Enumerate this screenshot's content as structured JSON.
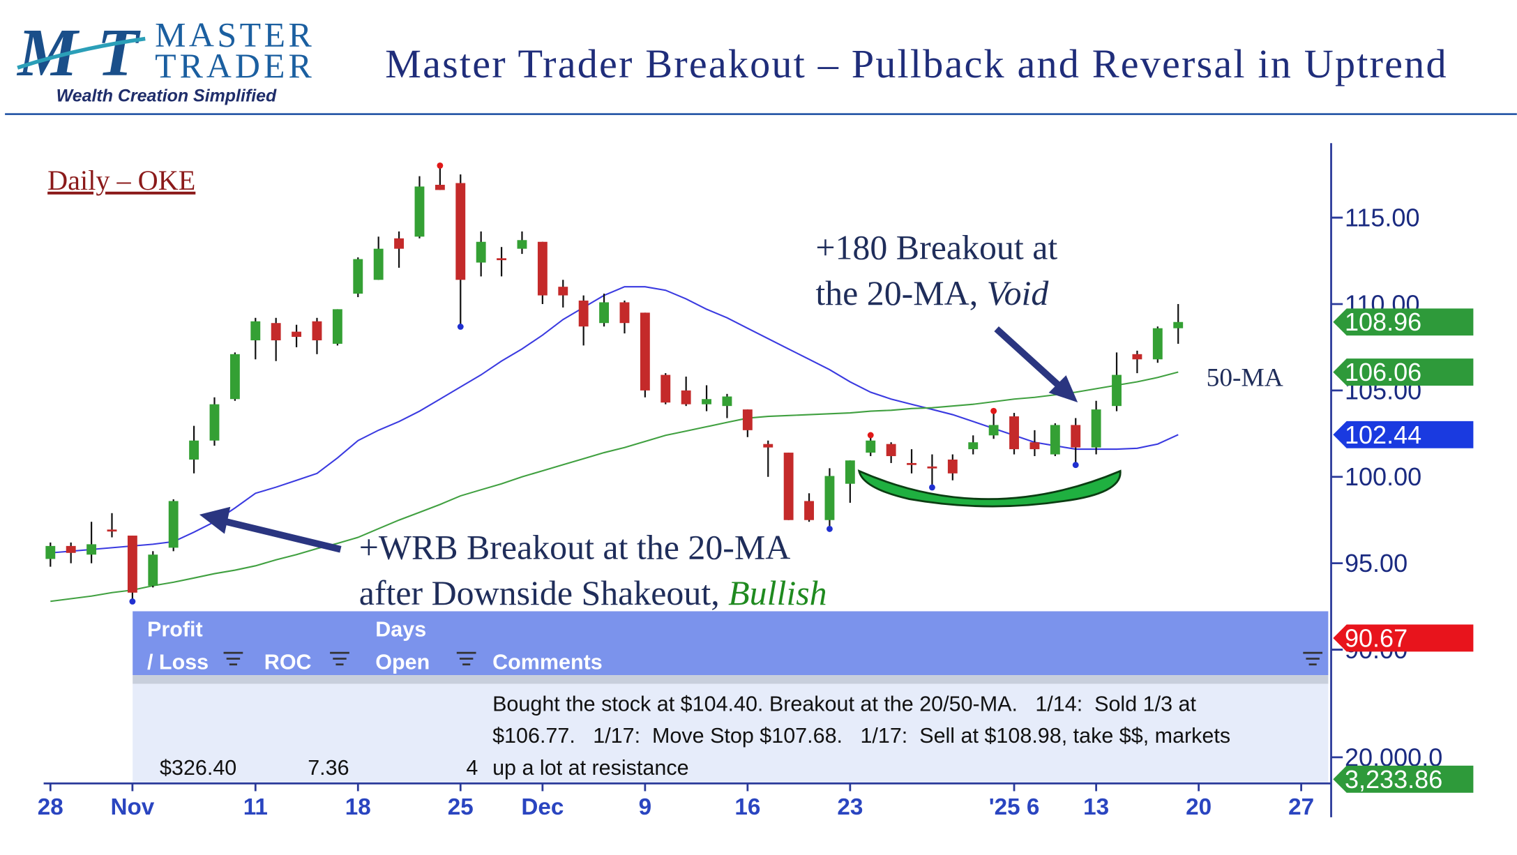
{
  "header": {
    "logo_mark": "MT",
    "logo_top": "MASTER",
    "logo_bottom": "TRADER",
    "tagline": "Wealth Creation Simplified",
    "title": "Master Trader Breakout – Pullback and Reversal in Uptrend"
  },
  "chart_data": {
    "type": "candlestick",
    "subtitle": "Daily – OKE",
    "up_color": "#34a034",
    "down_color": "#c42a2a",
    "open": [
      95.25,
      96.0,
      95.5,
      96.95,
      96.6,
      93.7,
      95.9,
      101.0,
      102.1,
      104.5,
      107.9,
      108.9,
      108.4,
      109.0,
      107.7,
      110.6,
      111.4,
      113.8,
      113.9,
      116.9,
      117.0,
      112.4,
      112.65,
      113.2,
      113.6,
      111.0,
      110.2,
      108.9,
      110.1,
      109.5,
      105.9,
      105.0,
      104.2,
      104.1,
      103.9,
      101.9,
      101.4,
      98.6,
      97.5,
      99.6,
      101.4,
      101.9,
      100.8,
      100.6,
      101.0,
      101.6,
      102.4,
      103.5,
      102.0,
      101.3,
      103.0,
      101.7,
      104.1,
      107.1,
      106.8,
      108.6
    ],
    "high": [
      96.2,
      96.2,
      97.4,
      97.9,
      96.6,
      95.7,
      98.7,
      102.95,
      104.6,
      107.2,
      109.2,
      109.2,
      108.8,
      109.2,
      109.7,
      112.7,
      113.9,
      114.2,
      117.4,
      117.9,
      117.5,
      114.2,
      113.3,
      114.2,
      113.6,
      111.4,
      110.5,
      110.6,
      110.2,
      109.5,
      106.0,
      105.8,
      105.3,
      104.8,
      103.9,
      102.1,
      101.4,
      99.05,
      100.5,
      100.95,
      102.3,
      102.0,
      101.6,
      101.3,
      101.3,
      102.4,
      103.7,
      103.7,
      102.7,
      103.1,
      103.4,
      104.4,
      107.2,
      107.3,
      108.7,
      110.0
    ],
    "low": [
      94.8,
      95.0,
      95.0,
      96.5,
      92.9,
      93.6,
      95.7,
      100.2,
      101.8,
      104.4,
      106.8,
      106.7,
      107.5,
      107.1,
      107.6,
      110.4,
      111.4,
      112.1,
      113.8,
      116.6,
      108.8,
      111.6,
      111.6,
      112.9,
      110.0,
      109.8,
      107.6,
      108.7,
      108.3,
      104.6,
      104.2,
      104.1,
      103.8,
      103.4,
      102.3,
      100.0,
      97.5,
      97.4,
      97.1,
      98.5,
      101.2,
      100.8,
      100.2,
      99.5,
      99.8,
      101.3,
      102.2,
      101.3,
      101.2,
      101.2,
      100.8,
      101.3,
      103.8,
      106.0,
      106.6,
      107.7
    ],
    "close": [
      96.0,
      95.6,
      96.1,
      96.85,
      93.3,
      95.5,
      98.6,
      102.1,
      104.2,
      107.1,
      109.0,
      107.9,
      108.1,
      107.9,
      109.7,
      112.6,
      113.2,
      113.2,
      116.8,
      116.6,
      111.4,
      113.6,
      112.55,
      113.7,
      110.5,
      110.5,
      108.7,
      110.1,
      108.9,
      105.0,
      104.3,
      104.2,
      104.5,
      104.65,
      102.7,
      101.7,
      97.5,
      97.5,
      100.05,
      100.95,
      102.1,
      101.2,
      100.7,
      100.5,
      100.2,
      102.0,
      103.0,
      101.6,
      101.6,
      103.0,
      101.7,
      103.9,
      105.9,
      106.8,
      108.6,
      108.96
    ],
    "pivot_highs": [
      19,
      40,
      46
    ],
    "pivot_high_color": "#e01818",
    "pivot_lows": [
      4,
      20,
      38,
      43,
      50
    ],
    "pivot_low_color": "#2030d0",
    "series": [
      {
        "color": "#3a3ae0",
        "values": [
          95.6,
          95.7,
          95.8,
          95.9,
          96.0,
          96.1,
          96.25,
          96.8,
          97.4,
          98.2,
          99.05,
          99.4,
          99.8,
          100.2,
          101.1,
          102.1,
          102.7,
          103.2,
          103.8,
          104.5,
          105.2,
          105.9,
          106.7,
          107.4,
          108.2,
          109.1,
          109.8,
          110.5,
          111.0,
          111.0,
          110.8,
          110.3,
          109.7,
          109.2,
          108.6,
          108.0,
          107.4,
          106.8,
          106.2,
          105.5,
          104.9,
          104.5,
          104.2,
          103.9,
          103.6,
          103.2,
          102.8,
          102.4,
          102.0,
          101.8,
          101.6,
          101.6,
          101.6,
          101.65,
          101.9,
          102.44
        ]
      },
      {
        "name": "50-MA",
        "color": "#40a040",
        "values": [
          92.8,
          92.95,
          93.1,
          93.3,
          93.45,
          93.7,
          93.9,
          94.15,
          94.4,
          94.6,
          94.85,
          95.2,
          95.5,
          95.85,
          96.15,
          96.5,
          97.0,
          97.5,
          97.95,
          98.4,
          98.9,
          99.25,
          99.6,
          100.0,
          100.35,
          100.7,
          101.05,
          101.4,
          101.7,
          102.05,
          102.4,
          102.65,
          102.9,
          103.15,
          103.4,
          103.5,
          103.55,
          103.6,
          103.65,
          103.7,
          103.8,
          103.85,
          103.95,
          104.0,
          104.1,
          104.2,
          104.35,
          104.5,
          104.6,
          104.75,
          104.9,
          105.1,
          105.3,
          105.5,
          105.75,
          106.06
        ]
      }
    ],
    "ylim": [
      82.26,
      119.31
    ],
    "yticks": [
      {
        "value": 90,
        "label": "90.00"
      },
      {
        "value": 95,
        "label": "95.00"
      },
      {
        "value": 100,
        "label": "100.00"
      },
      {
        "value": 105,
        "label": "105.00"
      },
      {
        "value": 110,
        "label": "110.00"
      },
      {
        "value": 115,
        "label": "115.00"
      }
    ],
    "xlim": [
      -0.33,
      62.46
    ],
    "xticks": [
      {
        "value": 0,
        "label": "28"
      },
      {
        "value": 4,
        "label": "Nov"
      },
      {
        "value": 10,
        "label": "11"
      },
      {
        "value": 15,
        "label": "18"
      },
      {
        "value": 20,
        "label": "25"
      },
      {
        "value": 24,
        "label": "Dec"
      },
      {
        "value": 29,
        "label": "9"
      },
      {
        "value": 34,
        "label": "16"
      },
      {
        "value": 39,
        "label": "23"
      },
      {
        "value": 47,
        "label": "'25 6"
      },
      {
        "value": 51,
        "label": "13"
      },
      {
        "value": 56,
        "label": "20"
      },
      {
        "value": 61,
        "label": "27"
      }
    ],
    "price_labels": [
      {
        "value": 108.96,
        "color": "#2e9a3a"
      },
      {
        "value": 106.06,
        "color": "#2e9a3a"
      },
      {
        "value": 102.44,
        "color": "#1a3ae0"
      },
      {
        "value": 90.67,
        "color": "#e8141c"
      }
    ],
    "volume": {
      "ticks": [
        {
          "value": 20000,
          "label": "20,000.0"
        }
      ],
      "last": {
        "value": 3233.86,
        "label": "3,233.86",
        "color": "#2e9a3a"
      }
    },
    "annotations": [
      {
        "lines": [
          {
            "text": "+180 Breakout at"
          },
          {
            "text": "the 20-MA, ",
            "emphasis": "Void"
          }
        ]
      },
      {
        "lines": [
          {
            "text": "+WRB Breakout at the 20-MA"
          },
          {
            "text": "after Downside Shakeout, ",
            "emphasis": "Bullish"
          }
        ]
      }
    ]
  },
  "table": {
    "columns": [
      [
        "Profit",
        "/ Loss"
      ],
      [
        "ROC"
      ],
      [
        "Days",
        "Open"
      ],
      [
        "Comments"
      ]
    ],
    "rows": [
      [
        "$326.40",
        "7.36",
        "4",
        [
          "Bought the stock at $104.40. Breakout at the 20/50-MA.   1/14:  Sold 1/3 at",
          "$106.77.   1/17:  Move Stop $107.68.   1/17:  Sell at $108.98, take $$, markets",
          "up a lot at resistance"
        ]
      ]
    ]
  }
}
